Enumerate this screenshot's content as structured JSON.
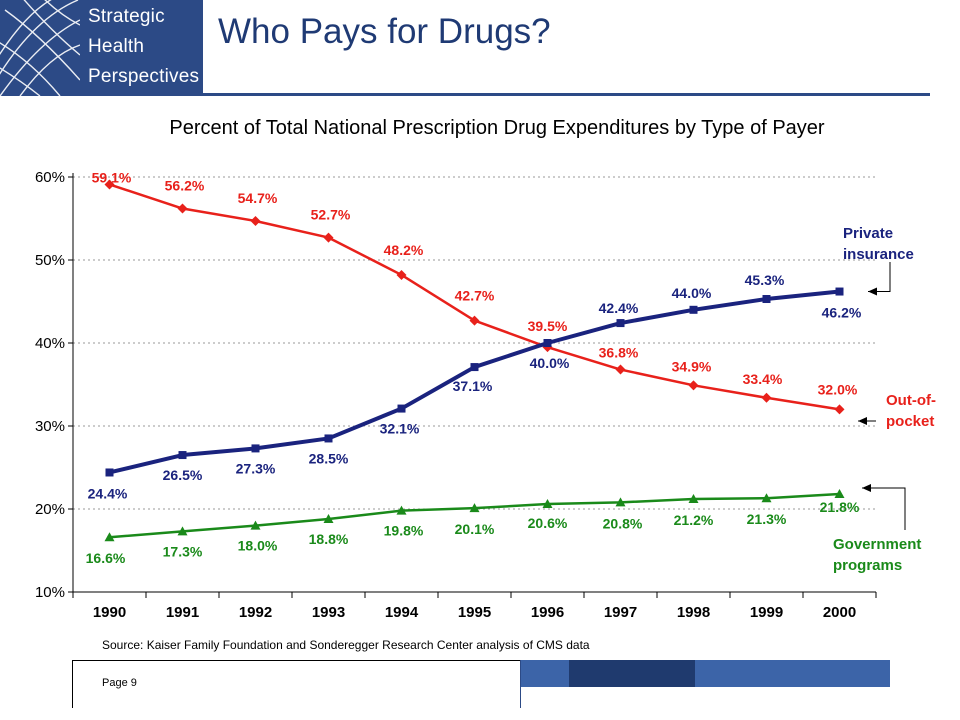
{
  "logo": {
    "lines": [
      "Strategic",
      "Health",
      "Perspectives"
    ]
  },
  "title": "Who Pays for Drugs?",
  "footer": {
    "source": "Source: Kaiser Family Foundation and Sonderegger Research Center analysis of CMS data",
    "page": "Page 9"
  },
  "colors": {
    "brand": "#2c4a86",
    "deco_dark": "#1f3a6e",
    "deco_light": "#3c64a8"
  },
  "chart_data": {
    "type": "line",
    "title": "Percent of Total National Prescription Drug Expenditures by Type of Payer",
    "xlabel": "",
    "ylabel": "",
    "categories": [
      "1990",
      "1991",
      "1992",
      "1993",
      "1994",
      "1995",
      "1996",
      "1997",
      "1998",
      "1999",
      "2000"
    ],
    "ylim": [
      10,
      60
    ],
    "yticks": [
      "10%",
      "20%",
      "30%",
      "40%",
      "50%",
      "60%"
    ],
    "grid": "horizontal dotted",
    "series": [
      {
        "name": "Out-of-pocket",
        "color": "#e8211b",
        "marker": "diamond",
        "values": [
          59.1,
          56.2,
          54.7,
          52.7,
          48.2,
          42.7,
          39.5,
          36.8,
          34.9,
          33.4,
          32.0
        ],
        "labels": [
          "59.1%",
          "56.2%",
          "54.7%",
          "52.7%",
          "48.2%",
          "42.7%",
          "39.5%",
          "36.8%",
          "34.9%",
          "33.4%",
          "32.0%"
        ]
      },
      {
        "name": "Private insurance",
        "color": "#1a237e",
        "marker": "square",
        "values": [
          24.4,
          26.5,
          27.3,
          28.5,
          32.1,
          37.1,
          40.0,
          42.4,
          44.0,
          45.3,
          46.2
        ],
        "labels": [
          "24.4%",
          "26.5%",
          "27.3%",
          "28.5%",
          "32.1%",
          "37.1%",
          "40.0%",
          "42.4%",
          "44.0%",
          "45.3%",
          "46.2%"
        ]
      },
      {
        "name": "Government programs",
        "color": "#1a8a1a",
        "marker": "triangle",
        "values": [
          16.6,
          17.3,
          18.0,
          18.8,
          19.8,
          20.1,
          20.6,
          20.8,
          21.2,
          21.3,
          21.8
        ],
        "labels": [
          "16.6%",
          "17.3%",
          "18.0%",
          "18.8%",
          "19.8%",
          "20.1%",
          "20.6%",
          "20.8%",
          "21.2%",
          "21.3%",
          "21.8%"
        ]
      }
    ],
    "callouts": [
      {
        "series": "Private insurance",
        "lines": [
          "Private",
          "insurance"
        ],
        "color": "#1a237e"
      },
      {
        "series": "Out-of-pocket",
        "lines": [
          "Out-of-",
          "pocket"
        ],
        "color": "#e8211b"
      },
      {
        "series": "Government programs",
        "lines": [
          "Government",
          "programs"
        ],
        "color": "#1a8a1a"
      }
    ]
  }
}
